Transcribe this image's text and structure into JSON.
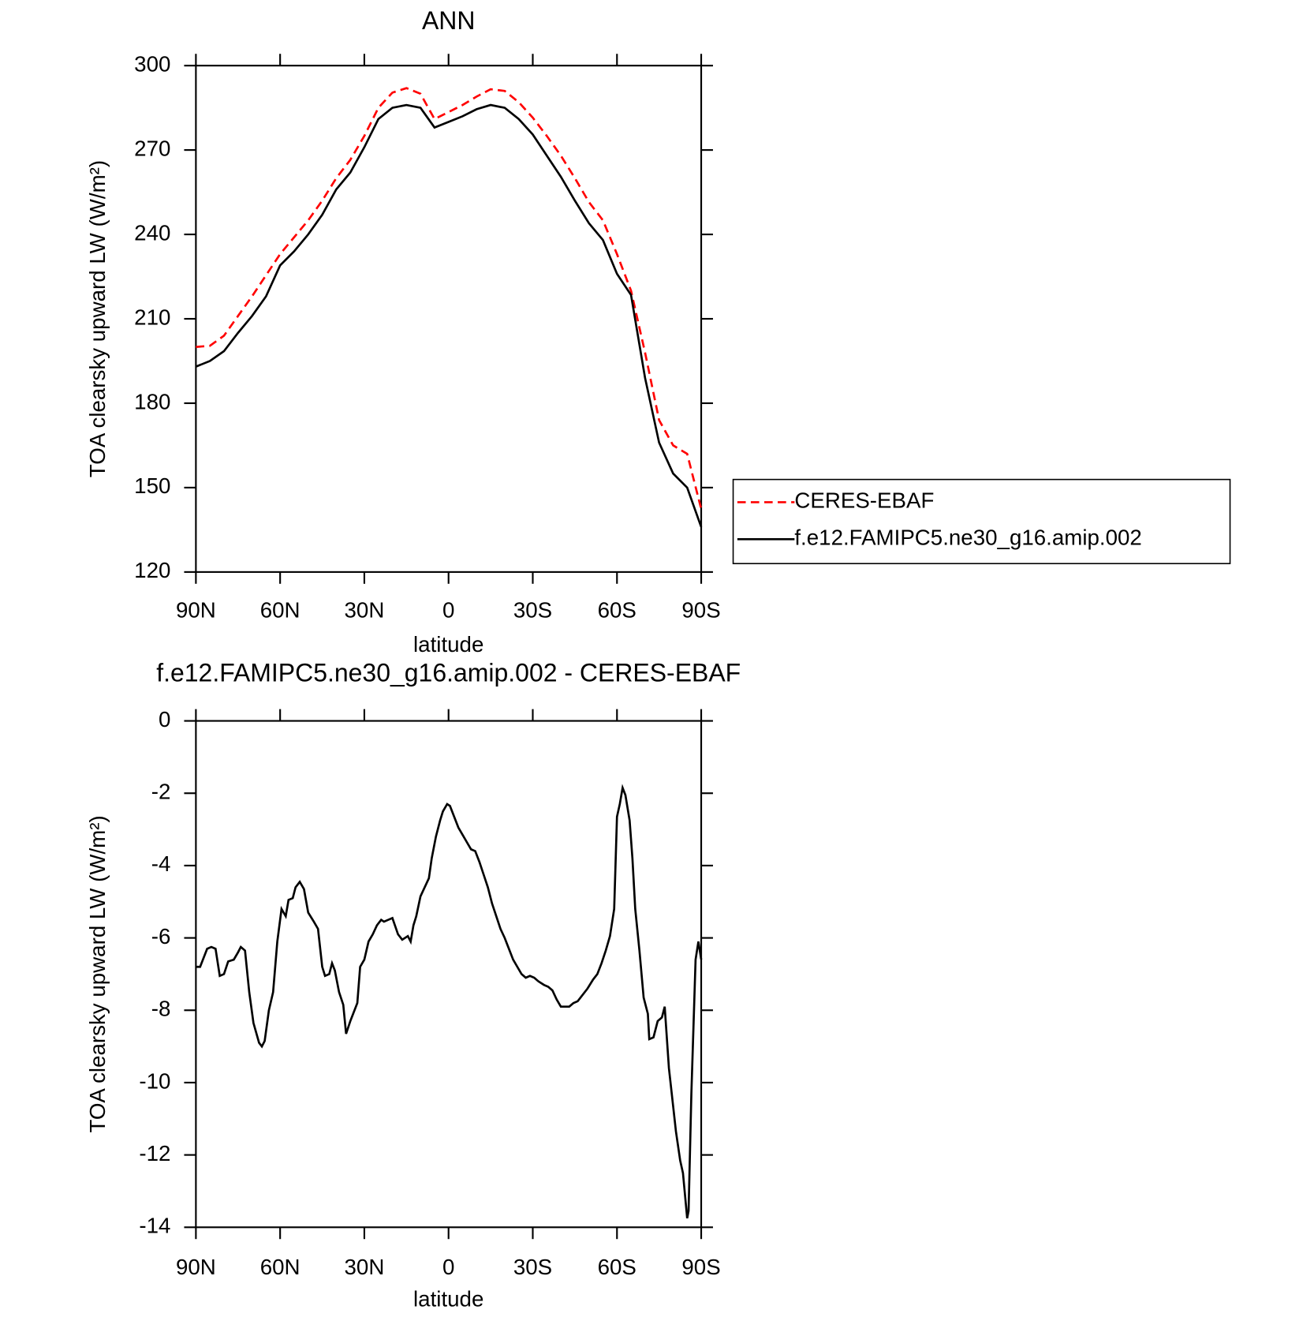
{
  "chart_data": [
    {
      "type": "line",
      "title": "ANN",
      "xlabel": "latitude",
      "ylabel": "TOA clearsky upward LW (W/m²)",
      "x": [
        90,
        85,
        80,
        75,
        70,
        65,
        60,
        55,
        50,
        45,
        40,
        35,
        30,
        25,
        20,
        15,
        10,
        5,
        0,
        -5,
        -10,
        -15,
        -20,
        -25,
        -30,
        -35,
        -40,
        -45,
        -50,
        -55,
        -60,
        -65,
        -70,
        -75,
        -80,
        -85,
        -90
      ],
      "series": [
        {
          "name": "CERES-EBAF",
          "color": "#ff0000",
          "line_style": "dashed",
          "values": [
            200,
            200.4,
            204,
            211,
            218,
            225.5,
            233,
            239,
            245,
            252,
            260,
            266.5,
            275,
            285,
            290.4,
            292,
            290,
            281,
            283.5,
            286,
            289,
            291.6,
            291,
            287,
            281.5,
            275,
            268,
            260,
            251.5,
            245,
            233,
            220,
            198,
            174,
            165,
            162,
            142.4
          ]
        },
        {
          "name": "f.e12.FAMIPC5.ne30_g16.amip.002",
          "color": "#000000",
          "line_style": "solid",
          "values": [
            193,
            195,
            198.5,
            205,
            211,
            218,
            229,
            234,
            240,
            247,
            256,
            262,
            271,
            281,
            285,
            286,
            285,
            278,
            280,
            282,
            284.5,
            286,
            285,
            281,
            275.5,
            268,
            260.5,
            252,
            244,
            238,
            226,
            218.5,
            189,
            166,
            155,
            150,
            136
          ]
        }
      ],
      "xlim": [
        90,
        -90
      ],
      "xticks": [
        {
          "value": 90,
          "label": "90N"
        },
        {
          "value": 60,
          "label": "60N"
        },
        {
          "value": 30,
          "label": "30N"
        },
        0,
        {
          "value": -30,
          "label": "30S"
        },
        {
          "value": -60,
          "label": "60S"
        },
        {
          "value": -90,
          "label": "90S"
        }
      ],
      "ylim": [
        120,
        300
      ],
      "yticks": [
        120,
        150,
        180,
        210,
        240,
        270,
        300
      ],
      "grid": false,
      "legend": "right"
    },
    {
      "type": "line",
      "title": "f.e12.FAMIPC5.ne30_g16.amip.002 - CERES-EBAF",
      "xlabel": "latitude",
      "ylabel": "TOA clearsky upward LW (W/m²)",
      "x": [
        90,
        88.5,
        86,
        84.5,
        83,
        81.5,
        80,
        78.5,
        76.5,
        75,
        74,
        72.5,
        71,
        69.5,
        67.5,
        66.5,
        65.5,
        64,
        62.5,
        61,
        59.5,
        58,
        57,
        55.5,
        54.5,
        53,
        51.5,
        50,
        48,
        46.5,
        45,
        44,
        42.5,
        41.5,
        40.5,
        39,
        37.5,
        36.5,
        35,
        34,
        32.5,
        31.5,
        30,
        28.5,
        27,
        25.5,
        24,
        23,
        21.5,
        20,
        18,
        16.5,
        14.5,
        13.5,
        12.5,
        11.5,
        10,
        8.5,
        7,
        6,
        4.5,
        3,
        2,
        0.5,
        -0.5,
        -2,
        -3.5,
        -5,
        -6.5,
        -8,
        -9.5,
        -11,
        -12.5,
        -14,
        -15.5,
        -17,
        -18.5,
        -20,
        -21.5,
        -23,
        -24.5,
        -26,
        -27.5,
        -29,
        -30.5,
        -32,
        -34,
        -35.5,
        -37,
        -38.5,
        -40,
        -41.5,
        -43,
        -44.5,
        -46,
        -47.5,
        -49.5,
        -51.5,
        -53,
        -54.5,
        -56,
        -57.5,
        -59,
        -60,
        -61,
        -62,
        -63,
        -64.5,
        -65.5,
        -66.5,
        -68,
        -69.5,
        -71,
        -71.5,
        -73,
        -74.5,
        -76,
        -77,
        -78.5,
        -79.5,
        -81,
        -82.5,
        -83.5,
        -85,
        -85.5,
        -86.5,
        -88,
        -89,
        -90
      ],
      "series": [
        {
          "name": "f.e12.FAMIPC5.ne30_g16.amip.002 - CERES-EBAF",
          "color": "#000000",
          "line_style": "solid",
          "values": [
            -6.8,
            -6.8,
            -6.3,
            -6.25,
            -6.3,
            -7.05,
            -7.0,
            -6.65,
            -6.6,
            -6.4,
            -6.25,
            -6.35,
            -7.5,
            -8.35,
            -8.9,
            -9.0,
            -8.85,
            -8.0,
            -7.5,
            -6.1,
            -5.2,
            -5.4,
            -4.95,
            -4.9,
            -4.6,
            -4.45,
            -4.65,
            -5.3,
            -5.55,
            -5.75,
            -6.8,
            -7.05,
            -7.0,
            -6.7,
            -6.9,
            -7.5,
            -7.85,
            -8.65,
            -8.3,
            -8.1,
            -7.8,
            -6.8,
            -6.6,
            -6.1,
            -5.9,
            -5.65,
            -5.5,
            -5.55,
            -5.5,
            -5.45,
            -5.9,
            -6.05,
            -5.95,
            -6.1,
            -5.65,
            -5.4,
            -4.85,
            -4.6,
            -4.35,
            -3.8,
            -3.2,
            -2.75,
            -2.5,
            -2.3,
            -2.35,
            -2.65,
            -2.95,
            -3.15,
            -3.35,
            -3.55,
            -3.6,
            -3.9,
            -4.25,
            -4.6,
            -5.05,
            -5.4,
            -5.75,
            -6.0,
            -6.3,
            -6.6,
            -6.8,
            -7.0,
            -7.1,
            -7.05,
            -7.1,
            -7.2,
            -7.3,
            -7.35,
            -7.45,
            -7.7,
            -7.9,
            -7.9,
            -7.9,
            -7.8,
            -7.75,
            -7.6,
            -7.4,
            -7.15,
            -7.0,
            -6.7,
            -6.35,
            -5.95,
            -5.2,
            -2.65,
            -2.3,
            -1.85,
            -2.05,
            -2.75,
            -3.8,
            -5.2,
            -6.35,
            -7.65,
            -8.1,
            -8.8,
            -8.75,
            -8.3,
            -8.2,
            -7.9,
            -9.6,
            -10.3,
            -11.35,
            -12.15,
            -12.5,
            -13.75,
            -13.55,
            -10.3,
            -6.6,
            -6.1,
            -6.6
          ]
        }
      ],
      "xlim": [
        90,
        -90
      ],
      "xticks": [
        {
          "value": 90,
          "label": "90N"
        },
        {
          "value": 60,
          "label": "60N"
        },
        {
          "value": 30,
          "label": "30N"
        },
        0,
        {
          "value": -30,
          "label": "30S"
        },
        {
          "value": -60,
          "label": "60S"
        },
        {
          "value": -90,
          "label": "90S"
        }
      ],
      "ylim": [
        -14,
        0
      ],
      "yticks": [
        -14,
        -12,
        -10,
        -8,
        -6,
        -4,
        -2,
        0
      ],
      "grid": false
    }
  ]
}
